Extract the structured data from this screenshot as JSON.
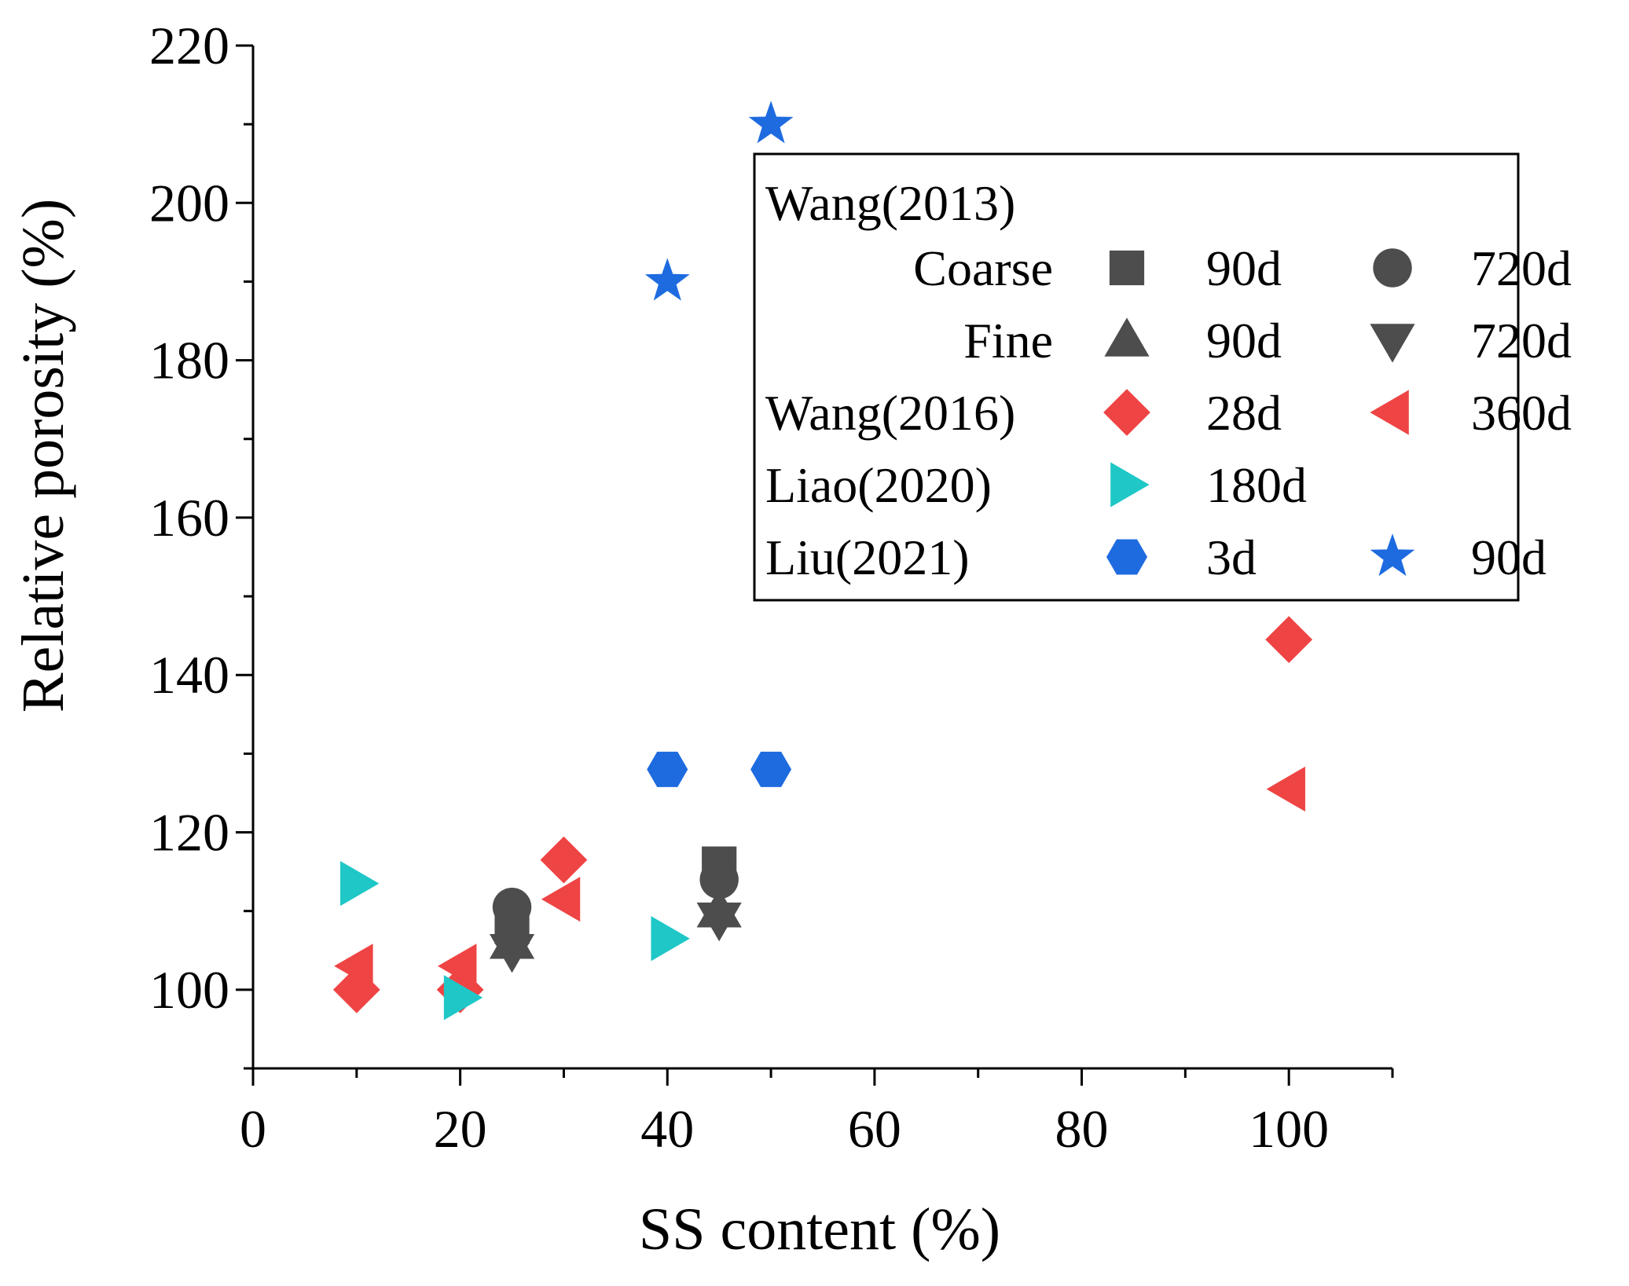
{
  "chart_data": {
    "type": "scatter",
    "title": "",
    "xlabel": "SS content (%)",
    "ylabel": "Relative porosity (%)",
    "xlim": [
      0,
      110
    ],
    "ylim": [
      90,
      220
    ],
    "xticks": [
      0,
      20,
      40,
      60,
      80,
      100
    ],
    "yticks": [
      100,
      120,
      140,
      160,
      180,
      200,
      220
    ],
    "grid": false,
    "legend_position": "top-right",
    "legend": {
      "rows": [
        {
          "group": "Wang(2013)",
          "sub": "",
          "entries": []
        },
        {
          "group": "",
          "sub": "Coarse",
          "entries": [
            "s1",
            "s2"
          ]
        },
        {
          "group": "",
          "sub": "Fine",
          "entries": [
            "s3",
            "s4"
          ]
        },
        {
          "group": "Wang(2016)",
          "sub": "",
          "entries": [
            "s5",
            "s6"
          ]
        },
        {
          "group": "Liao(2020)",
          "sub": "",
          "entries": [
            "s7"
          ]
        },
        {
          "group": "Liu(2021)",
          "sub": "",
          "entries": [
            "s8",
            "s9"
          ]
        }
      ]
    },
    "series": [
      {
        "id": "s1",
        "label": "90d",
        "marker": "square",
        "color": "#4d4d4d",
        "points": [
          [
            25,
            108
          ],
          [
            45,
            116
          ]
        ]
      },
      {
        "id": "s2",
        "label": "720d",
        "marker": "circle",
        "color": "#4d4d4d",
        "points": [
          [
            25,
            110.5
          ],
          [
            45,
            114
          ]
        ]
      },
      {
        "id": "s3",
        "label": "90d",
        "marker": "triangle-up",
        "color": "#4d4d4d",
        "points": [
          [
            25,
            106
          ],
          [
            45,
            110
          ]
        ]
      },
      {
        "id": "s4",
        "label": "720d",
        "marker": "triangle-down",
        "color": "#4d4d4d",
        "points": [
          [
            25,
            105
          ],
          [
            45,
            109
          ]
        ]
      },
      {
        "id": "s5",
        "label": "28d",
        "marker": "diamond",
        "color": "#ef4444",
        "points": [
          [
            10,
            100
          ],
          [
            20,
            100
          ],
          [
            30,
            116.5
          ],
          [
            100,
            144.5
          ]
        ]
      },
      {
        "id": "s6",
        "label": "360d",
        "marker": "triangle-left",
        "color": "#ef4444",
        "points": [
          [
            10,
            103
          ],
          [
            20,
            103
          ],
          [
            30,
            111.5
          ],
          [
            100,
            125.5
          ]
        ]
      },
      {
        "id": "s7",
        "label": "180d",
        "marker": "triangle-right",
        "color": "#1fc7c7",
        "points": [
          [
            10,
            113.5
          ],
          [
            20,
            99
          ],
          [
            40,
            106.5
          ]
        ]
      },
      {
        "id": "s8",
        "label": "3d",
        "marker": "hexagon",
        "color": "#1e6be0",
        "points": [
          [
            40,
            128
          ],
          [
            50,
            128
          ]
        ]
      },
      {
        "id": "s9",
        "label": "90d",
        "marker": "star",
        "color": "#1e6be0",
        "points": [
          [
            40,
            190
          ],
          [
            50,
            210
          ]
        ]
      }
    ]
  }
}
